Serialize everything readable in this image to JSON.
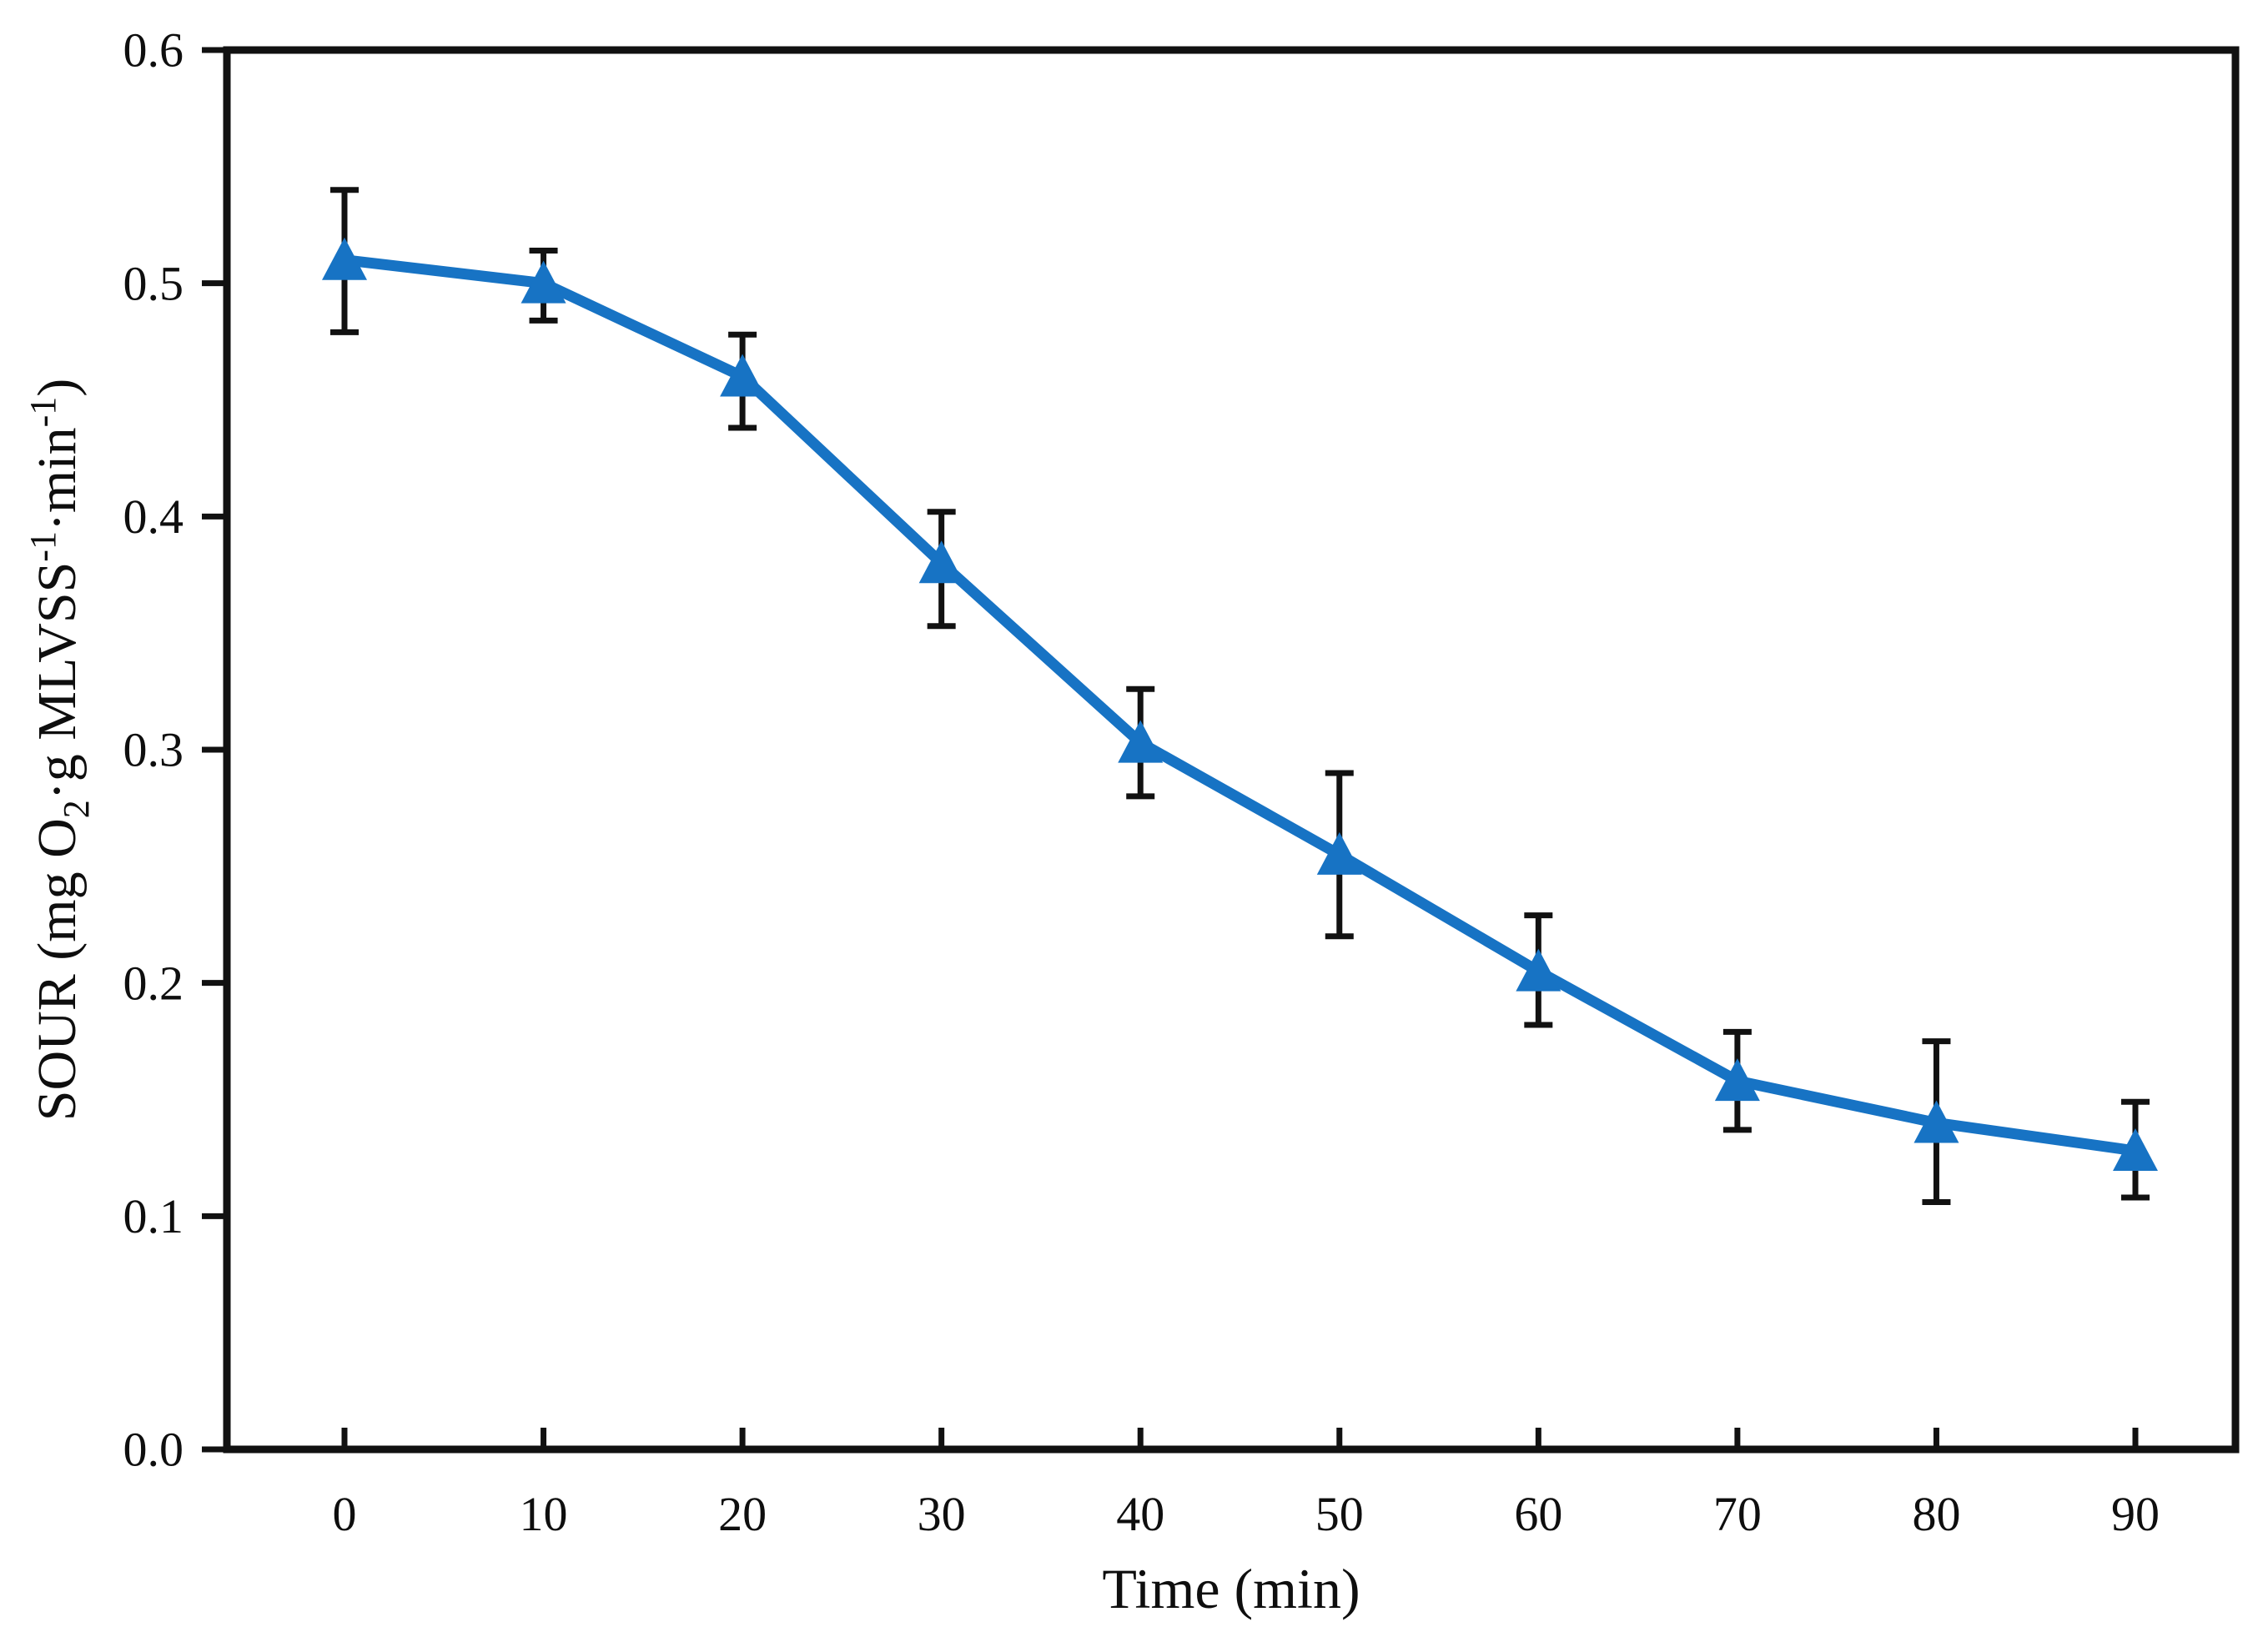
{
  "figure": {
    "background": "#FFFFFF"
  },
  "chart_data": {
    "type": "line",
    "title": "",
    "xlabel": "Time (min)",
    "ylabel": "SOUR (mg O2·g MLVSS-1·min-1)",
    "ylabel_parts": [
      {
        "text": "SOUR (mg O",
        "style": "normal"
      },
      {
        "text": "2",
        "style": "sub"
      },
      {
        "text": "·g MLVSS",
        "style": "normal"
      },
      {
        "text": "-1",
        "style": "sup"
      },
      {
        "text": "·min",
        "style": "normal"
      },
      {
        "text": "-1",
        "style": "sup"
      },
      {
        "text": ")",
        "style": "normal"
      }
    ],
    "x": [
      0,
      10,
      20,
      30,
      40,
      50,
      60,
      70,
      80,
      90
    ],
    "xticks": [
      0,
      10,
      20,
      30,
      40,
      50,
      60,
      70,
      80,
      90
    ],
    "xtick_labels": [
      "0",
      "10",
      "20",
      "30",
      "40",
      "50",
      "60",
      "70",
      "80",
      "90"
    ],
    "yticks": [
      0,
      0.1,
      0.2,
      0.3,
      0.4,
      0.5,
      0.6
    ],
    "ytick_labels": [
      "0.0",
      "0.1",
      "0.2",
      "0.3",
      "0.4",
      "0.5",
      "0.6"
    ],
    "xlim": [
      -6,
      95
    ],
    "ylim": [
      0,
      0.6
    ],
    "grid": false,
    "legend": "none",
    "frame": "box",
    "tick_style": {
      "x_ticks": "inside",
      "y_ticks": "outside"
    },
    "series": [
      {
        "name": "SOUR",
        "marker": "triangle-up",
        "color": "#1773C4",
        "values": [
          0.51,
          0.5,
          0.46,
          0.38,
          0.303,
          0.255,
          0.205,
          0.158,
          0.14,
          0.128
        ],
        "error_upper": [
          0.54,
          0.514,
          0.478,
          0.402,
          0.326,
          0.29,
          0.229,
          0.179,
          0.175,
          0.149
        ],
        "error_lower": [
          0.479,
          0.484,
          0.438,
          0.353,
          0.28,
          0.22,
          0.182,
          0.137,
          0.106,
          0.108
        ]
      }
    ],
    "colors": {
      "axis": "#111111",
      "error_bar": "#111111",
      "text": "#0e0e0e",
      "background": "#FFFFFF"
    }
  }
}
